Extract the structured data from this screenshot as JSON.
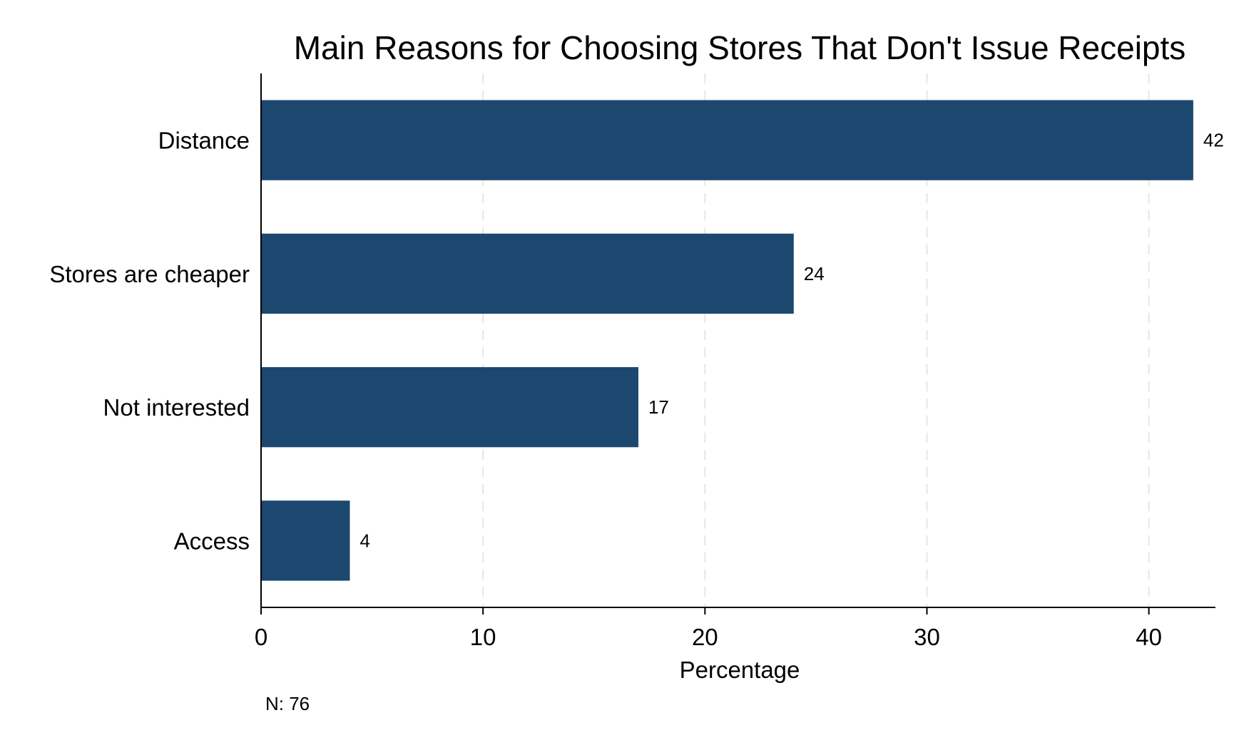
{
  "chart_data": {
    "type": "bar",
    "orientation": "horizontal",
    "title": "Main Reasons for Choosing Stores That Don't Issue Receipts",
    "categories": [
      "Distance",
      "Stores are cheaper",
      "Not interested",
      "Access"
    ],
    "values": [
      42,
      24,
      17,
      4
    ],
    "data_labels": [
      "42",
      "24",
      "17",
      "4"
    ],
    "xlabel": "Percentage",
    "ylabel": "",
    "xlim": [
      0,
      43
    ],
    "xticks": [
      0,
      10,
      20,
      30,
      40
    ],
    "grid": true,
    "bar_color": "#1c4870",
    "note": "N: 76"
  }
}
